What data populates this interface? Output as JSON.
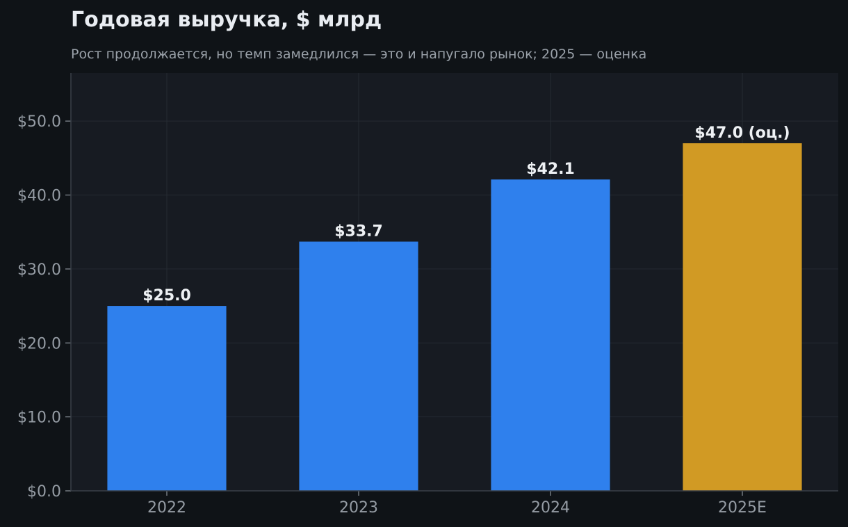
{
  "colors": {
    "background": "#0f1317",
    "plot_background": "#171b22",
    "actual_bar": "#2f80ed",
    "estimate_bar": "#d19a24",
    "grid": "#252b33",
    "axis": "#3a4048"
  },
  "chart_data": {
    "type": "bar",
    "title": "Годовая выручка, $ млрд",
    "subtitle": "Рост продолжается, но темп замедлился — это и напугало рынок; 2025 — оценка",
    "xlabel": "",
    "ylabel": "",
    "categories": [
      "2022",
      "2023",
      "2024",
      "2025E"
    ],
    "values": [
      25.0,
      33.7,
      42.1,
      47.0
    ],
    "bar_kinds": [
      "actual",
      "actual",
      "actual",
      "estimate"
    ],
    "data_labels": [
      "$25.0",
      "$33.7",
      "$42.1",
      "$47.0 (оц.)"
    ],
    "y_ticks": [
      0,
      10,
      20,
      30,
      40,
      50
    ],
    "y_tick_labels": [
      "$0.0",
      "$10.0",
      "$20.0",
      "$30.0",
      "$40.0",
      "$50.0"
    ],
    "ylim": [
      0,
      56.5
    ],
    "grid": true,
    "legend": false
  }
}
